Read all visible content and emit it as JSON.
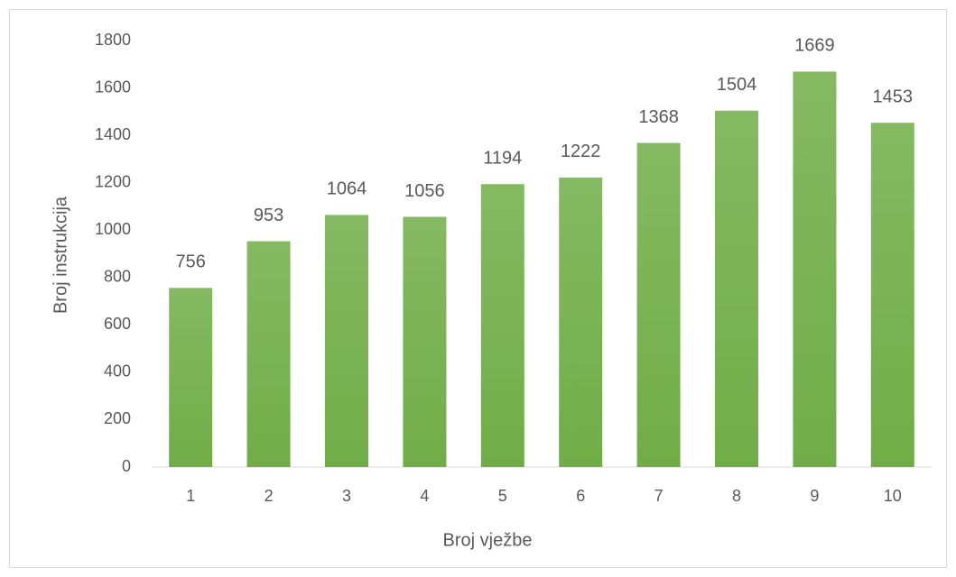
{
  "chart_data": {
    "type": "bar",
    "x_label": "Broj vježbe",
    "y_label": "Broj instrukcija",
    "categories": [
      "1",
      "2",
      "3",
      "4",
      "5",
      "6",
      "7",
      "8",
      "9",
      "10"
    ],
    "values": [
      756,
      953,
      1064,
      1056,
      1194,
      1222,
      1368,
      1504,
      1669,
      1453
    ],
    "color": "#70ad47",
    "ylim": [
      0,
      1800
    ],
    "yticks": [
      0,
      200,
      400,
      600,
      800,
      1000,
      1200,
      1400,
      1600,
      1800
    ],
    "grid": false
  }
}
